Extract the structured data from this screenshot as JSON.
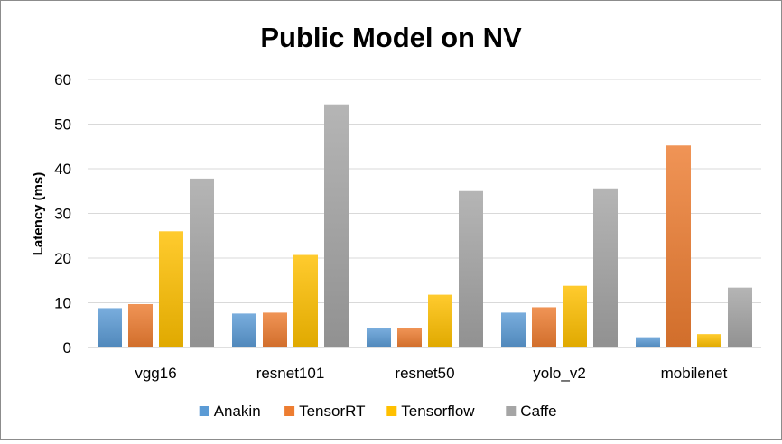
{
  "chart_data": {
    "type": "bar",
    "title": "Public Model on NV",
    "xlabel": "",
    "ylabel": "Latency (ms)",
    "ylim": [
      0,
      60
    ],
    "yticks": [
      0,
      10,
      20,
      30,
      40,
      50,
      60
    ],
    "grid": true,
    "legend_position": "bottom",
    "categories": [
      "vgg16",
      "resnet101",
      "resnet50",
      "yolo_v2",
      "mobilenet"
    ],
    "series": [
      {
        "name": "Anakin",
        "color": "#5B9BD5",
        "values": [
          8.8,
          7.6,
          4.3,
          7.8,
          2.3
        ]
      },
      {
        "name": "TensorRT",
        "color": "#ED7D31",
        "values": [
          9.7,
          7.8,
          4.3,
          9.0,
          45.2
        ]
      },
      {
        "name": "Tensorflow",
        "color": "#FFC000",
        "values": [
          26.0,
          20.7,
          11.8,
          13.8,
          3.0
        ]
      },
      {
        "name": "Caffe",
        "color": "#A5A5A5",
        "values": [
          37.8,
          54.4,
          35.0,
          35.6,
          13.4
        ]
      }
    ]
  }
}
